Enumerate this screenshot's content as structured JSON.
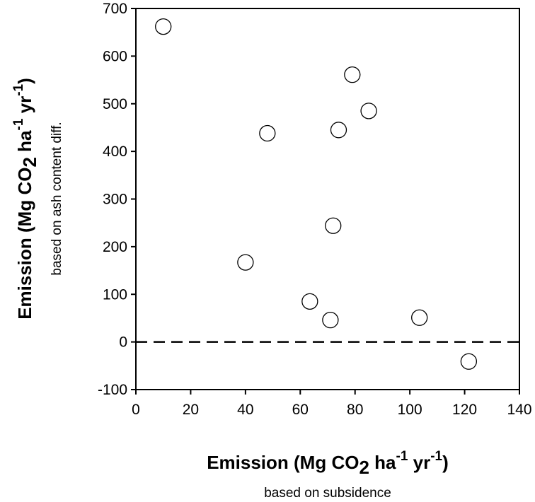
{
  "chart_data": {
    "type": "scatter",
    "xlim": [
      0,
      140
    ],
    "ylim": [
      -100,
      700
    ],
    "x_ticks": [
      0,
      20,
      40,
      60,
      80,
      100,
      120,
      140
    ],
    "y_ticks": [
      -100,
      0,
      100,
      200,
      300,
      400,
      500,
      600,
      700
    ],
    "reference_line": {
      "y": 0,
      "style": "dashed"
    },
    "grid": false,
    "marker": "open-circle",
    "xlabel": {
      "main": "Emission (Mg CO",
      "sub": "2",
      "unit_ha": " ha",
      "exp1": "-1",
      "unit_yr": " yr",
      "exp2": "-1",
      "close": ")",
      "subtitle": "based on subsidence"
    },
    "ylabel": {
      "main": "Emission (Mg CO",
      "sub": "2",
      "unit_ha": " ha",
      "exp1": "-1",
      "unit_yr": " yr",
      "exp2": "-1",
      "close": ")",
      "subtitle": "based on ash content diff."
    },
    "points": [
      {
        "x": 10,
        "y": 662
      },
      {
        "x": 48,
        "y": 438
      },
      {
        "x": 40,
        "y": 167
      },
      {
        "x": 63.5,
        "y": 85
      },
      {
        "x": 71,
        "y": 46
      },
      {
        "x": 72,
        "y": 244
      },
      {
        "x": 74,
        "y": 445
      },
      {
        "x": 79,
        "y": 561
      },
      {
        "x": 85,
        "y": 485
      },
      {
        "x": 103.5,
        "y": 51
      },
      {
        "x": 121.5,
        "y": -41
      }
    ]
  }
}
